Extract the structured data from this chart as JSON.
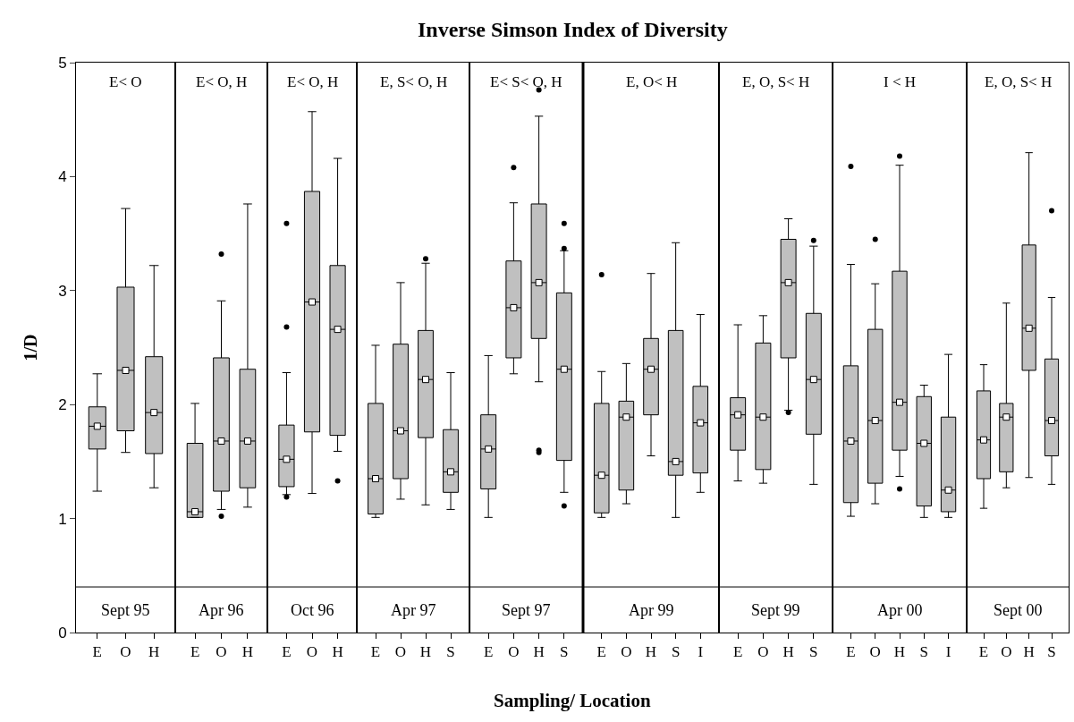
{
  "chart_data": [
    {
      "type": "box",
      "ylabel": "1/D",
      "color": "#c0c0c0",
      "categories": [
        "E",
        "O",
        "H"
      ],
      "ylim": [
        0,
        5
      ],
      "yticks": [
        0,
        1,
        2,
        3,
        4,
        5
      ],
      "annotations": [
        "E< O",
        "Sept 95",
        "Inverse Simson Index of Diversity",
        "Sampling/ Location"
      ],
      "ref_lines": [
        {
          "axis": "y",
          "value": 0.4
        }
      ],
      "boxes": [
        {
          "low": 1.24,
          "q1": 1.61,
          "median": 1.81,
          "q3": 1.98,
          "high": 2.27,
          "mean": 1.81
        },
        {
          "low": 1.58,
          "q1": 1.77,
          "median": 2.3,
          "q3": 3.03,
          "high": 3.72,
          "mean": 2.3
        },
        {
          "low": 1.27,
          "q1": 1.57,
          "median": 1.93,
          "q3": 2.42,
          "high": 3.22,
          "mean": 1.93
        }
      ]
    },
    {
      "type": "box",
      "color": "#c0c0c0",
      "categories": [
        "E",
        "O",
        "H"
      ],
      "ylim": [
        0,
        5
      ],
      "yticks": [
        0,
        1,
        2,
        3,
        4,
        5
      ],
      "tick_labels": "x",
      "annotations": [
        "E< O, H",
        "Apr 96"
      ],
      "ref_lines": [
        {
          "axis": "y",
          "value": 0.4
        }
      ],
      "boxes": [
        {
          "low": 1.01,
          "q1": 1.01,
          "median": 1.06,
          "q3": 1.66,
          "high": 2.01,
          "mean": 1.06
        },
        {
          "low": 1.08,
          "q1": 1.24,
          "median": 1.68,
          "q3": 2.41,
          "high": 2.91,
          "mean": 1.68,
          "outliers": [
            3.32,
            1.02
          ]
        },
        {
          "low": 1.1,
          "q1": 1.27,
          "median": 1.68,
          "q3": 2.31,
          "high": 3.76,
          "mean": 1.68
        }
      ]
    },
    {
      "type": "box",
      "color": "#c0c0c0",
      "categories": [
        "E",
        "O",
        "H"
      ],
      "ylim": [
        0,
        5
      ],
      "yticks": [
        0,
        1,
        2,
        3,
        4,
        5
      ],
      "tick_labels": "x",
      "annotations": [
        "E< O, H",
        "Oct 96"
      ],
      "ref_lines": [
        {
          "axis": "y",
          "value": 0.4
        }
      ],
      "boxes": [
        {
          "low": 1.21,
          "q1": 1.28,
          "median": 1.52,
          "q3": 1.82,
          "high": 2.28,
          "mean": 1.52,
          "outliers": [
            3.59,
            2.68,
            1.19
          ]
        },
        {
          "low": 1.22,
          "q1": 1.76,
          "median": 2.9,
          "q3": 3.87,
          "high": 4.57,
          "mean": 2.9
        },
        {
          "low": 1.59,
          "q1": 1.73,
          "median": 2.66,
          "q3": 3.22,
          "high": 4.16,
          "mean": 2.66,
          "outliers": [
            1.33
          ]
        }
      ]
    },
    {
      "type": "box",
      "color": "#c0c0c0",
      "categories": [
        "E",
        "O",
        "H",
        "S"
      ],
      "ylim": [
        0,
        5
      ],
      "yticks": [
        0,
        1,
        2,
        3,
        4,
        5
      ],
      "tick_labels": "x",
      "annotations": [
        "E, S< O, H",
        "Apr 97"
      ],
      "ref_lines": [
        {
          "axis": "y",
          "value": 0.4
        }
      ],
      "boxes": [
        {
          "low": 1.01,
          "q1": 1.04,
          "median": 1.35,
          "q3": 2.01,
          "high": 2.52,
          "mean": 1.35
        },
        {
          "low": 1.17,
          "q1": 1.35,
          "median": 1.77,
          "q3": 2.53,
          "high": 3.07,
          "mean": 1.77
        },
        {
          "low": 1.12,
          "q1": 1.71,
          "median": 2.22,
          "q3": 2.65,
          "high": 3.24,
          "mean": 2.22,
          "outliers": [
            3.28
          ]
        },
        {
          "low": 1.08,
          "q1": 1.23,
          "median": 1.41,
          "q3": 1.78,
          "high": 2.28,
          "mean": 1.41
        }
      ]
    },
    {
      "type": "box",
      "color": "#c0c0c0",
      "categories": [
        "E",
        "O",
        "H",
        "S"
      ],
      "ylim": [
        0,
        5
      ],
      "yticks": [
        0,
        1,
        2,
        3,
        4,
        5
      ],
      "tick_labels": "x",
      "annotations": [
        "E< S< O, H",
        "Sept 97"
      ],
      "ref_lines": [
        {
          "axis": "y",
          "value": 0.4
        }
      ],
      "boxes": [
        {
          "low": 1.01,
          "q1": 1.26,
          "median": 1.61,
          "q3": 1.91,
          "high": 2.43,
          "mean": 1.61
        },
        {
          "low": 2.27,
          "q1": 2.41,
          "median": 2.85,
          "q3": 3.26,
          "high": 3.77,
          "mean": 2.85,
          "outliers": [
            4.08
          ]
        },
        {
          "low": 2.2,
          "q1": 2.58,
          "median": 3.07,
          "q3": 3.76,
          "high": 4.53,
          "mean": 3.07,
          "outliers": [
            4.76,
            1.6,
            1.58
          ]
        },
        {
          "low": 1.23,
          "q1": 1.51,
          "median": 2.31,
          "q3": 2.98,
          "high": 3.35,
          "mean": 2.31,
          "outliers": [
            3.59,
            3.37,
            1.11
          ]
        }
      ]
    },
    {
      "type": "box",
      "color": "#c0c0c0",
      "categories": [
        "E",
        "O",
        "H",
        "S",
        "I"
      ],
      "ylim": [
        0,
        5
      ],
      "yticks": [
        0,
        1,
        2,
        3,
        4,
        5
      ],
      "tick_labels": "x",
      "annotations": [
        "E, O< H",
        "Apr 99"
      ],
      "ref_lines": [
        {
          "axis": "y",
          "value": 0.4
        }
      ],
      "boxes": [
        {
          "low": 1.01,
          "q1": 1.05,
          "median": 1.38,
          "q3": 2.01,
          "high": 2.29,
          "mean": 1.38,
          "outliers": [
            3.14
          ]
        },
        {
          "low": 1.13,
          "q1": 1.25,
          "median": 1.89,
          "q3": 2.03,
          "high": 2.36,
          "mean": 1.89
        },
        {
          "low": 1.55,
          "q1": 1.91,
          "median": 2.31,
          "q3": 2.58,
          "high": 3.15,
          "mean": 2.31
        },
        {
          "low": 1.01,
          "q1": 1.38,
          "median": 1.5,
          "q3": 2.65,
          "high": 3.42,
          "mean": 1.5
        },
        {
          "low": 1.23,
          "q1": 1.4,
          "median": 1.84,
          "q3": 2.16,
          "high": 2.79,
          "mean": 1.84
        }
      ]
    },
    {
      "type": "box",
      "color": "#c0c0c0",
      "categories": [
        "E",
        "O",
        "H",
        "S"
      ],
      "ylim": [
        0,
        5
      ],
      "yticks": [
        0,
        1,
        2,
        3,
        4,
        5
      ],
      "tick_labels": "x",
      "annotations": [
        "E, O, S< H",
        "Sept 99"
      ],
      "ref_lines": [
        {
          "axis": "y",
          "value": 0.4
        }
      ],
      "boxes": [
        {
          "low": 1.33,
          "q1": 1.6,
          "median": 1.91,
          "q3": 2.06,
          "high": 2.7,
          "mean": 1.91
        },
        {
          "low": 1.31,
          "q1": 1.43,
          "median": 1.89,
          "q3": 2.54,
          "high": 2.78,
          "mean": 1.89
        },
        {
          "low": 1.95,
          "q1": 2.41,
          "median": 3.07,
          "q3": 3.45,
          "high": 3.63,
          "mean": 3.07,
          "outliers": [
            1.93
          ]
        },
        {
          "low": 1.3,
          "q1": 1.74,
          "median": 2.22,
          "q3": 2.8,
          "high": 3.39,
          "mean": 2.22,
          "outliers": [
            3.44
          ]
        }
      ]
    },
    {
      "type": "box",
      "color": "#c0c0c0",
      "categories": [
        "E",
        "O",
        "H",
        "S",
        "I"
      ],
      "ylim": [
        0,
        5
      ],
      "yticks": [
        0,
        1,
        2,
        3,
        4,
        5
      ],
      "tick_labels": "x",
      "annotations": [
        "I < H",
        "Apr 00"
      ],
      "ref_lines": [
        {
          "axis": "y",
          "value": 0.4
        }
      ],
      "boxes": [
        {
          "low": 1.02,
          "q1": 1.14,
          "median": 1.68,
          "q3": 2.34,
          "high": 3.23,
          "mean": 1.68,
          "outliers": [
            4.09
          ]
        },
        {
          "low": 1.13,
          "q1": 1.31,
          "median": 1.86,
          "q3": 2.66,
          "high": 3.06,
          "mean": 1.86,
          "outliers": [
            3.45
          ]
        },
        {
          "low": 1.37,
          "q1": 1.6,
          "median": 2.02,
          "q3": 3.17,
          "high": 4.1,
          "mean": 2.02,
          "outliers": [
            4.18,
            1.26
          ]
        },
        {
          "low": 1.01,
          "q1": 1.11,
          "median": 1.66,
          "q3": 2.07,
          "high": 2.17,
          "mean": 1.66
        },
        {
          "low": 1.01,
          "q1": 1.06,
          "median": 1.25,
          "q3": 1.89,
          "high": 2.44,
          "mean": 1.25
        }
      ]
    },
    {
      "type": "box",
      "color": "#c0c0c0",
      "categories": [
        "E",
        "O",
        "H",
        "S"
      ],
      "ylim": [
        0,
        5
      ],
      "yticks": [
        0,
        1,
        2,
        3,
        4,
        5
      ],
      "tick_labels": "x",
      "annotations": [
        "E, O, S< H",
        "Sept 00"
      ],
      "ref_lines": [
        {
          "axis": "y",
          "value": 0.4
        }
      ],
      "boxes": [
        {
          "low": 1.09,
          "q1": 1.35,
          "median": 1.69,
          "q3": 2.12,
          "high": 2.35,
          "mean": 1.69
        },
        {
          "low": 1.27,
          "q1": 1.41,
          "median": 1.89,
          "q3": 2.01,
          "high": 2.89,
          "mean": 1.89
        },
        {
          "low": 1.36,
          "q1": 2.3,
          "median": 2.67,
          "q3": 3.4,
          "high": 4.21,
          "mean": 2.67
        },
        {
          "low": 1.3,
          "q1": 1.55,
          "median": 1.86,
          "q3": 2.4,
          "high": 2.94,
          "mean": 1.86,
          "outliers": [
            3.7
          ]
        }
      ]
    }
  ]
}
